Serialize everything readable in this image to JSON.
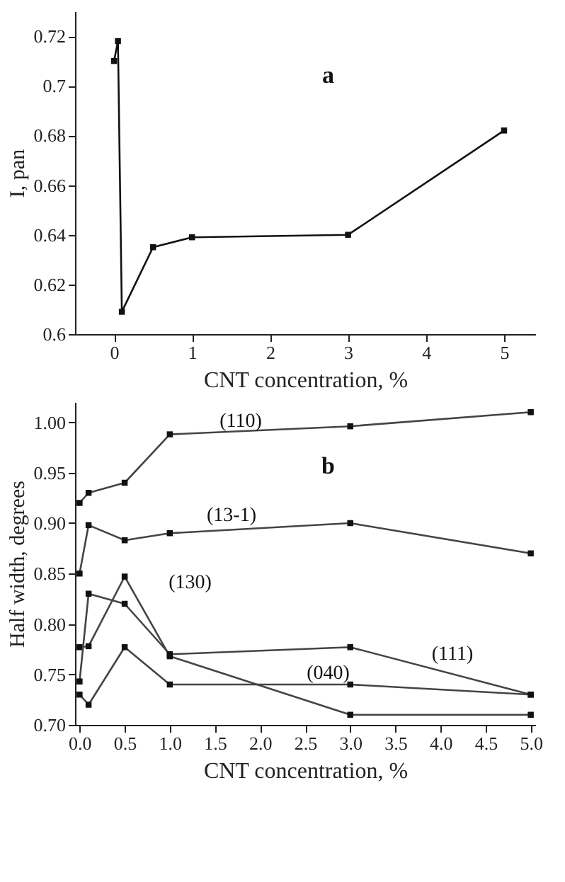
{
  "chart_data": [
    {
      "type": "line",
      "xlabel": "CNT concentration, %",
      "ylabel": "I, pan",
      "marker": "square",
      "line_style": "solid",
      "grid": false,
      "xlim": [
        -0.5,
        5.4
      ],
      "xticks": [
        0,
        1,
        2,
        3,
        4,
        5
      ],
      "ylim": [
        0.6,
        0.73
      ],
      "yticks": [
        0.6,
        0.62,
        0.64,
        0.66,
        0.68,
        0.7,
        0.72
      ],
      "annotations": [
        "a"
      ],
      "series": [
        {
          "color": "#111111",
          "x": [
            0,
            0.05,
            0.1,
            0.5,
            1,
            3,
            5
          ],
          "values": [
            0.71,
            0.718,
            0.609,
            0.635,
            0.639,
            0.64,
            0.682
          ]
        }
      ]
    },
    {
      "type": "line",
      "xlabel": "CNT concentration, %",
      "ylabel": "Half width, degrees",
      "marker": "square",
      "line_style": "solid",
      "grid": false,
      "xlim": [
        -0.05,
        5.05
      ],
      "xticks": [
        {
          "value": 0,
          "label": "0.0"
        },
        0.5,
        {
          "value": 1,
          "label": "1.0"
        },
        1.5,
        {
          "value": 2,
          "label": "2.0"
        },
        2.5,
        {
          "value": 3,
          "label": "3.0"
        },
        3.5,
        {
          "value": 4,
          "label": "4.0"
        },
        4.5,
        {
          "value": 5,
          "label": "5.0"
        }
      ],
      "ylim": [
        0.7,
        1.02
      ],
      "yticks": [
        {
          "value": 0.7,
          "label": "0.70"
        },
        0.75,
        {
          "value": 0.8,
          "label": "0.80"
        },
        0.85,
        {
          "value": 0.9,
          "label": "0.90"
        },
        0.95,
        {
          "value": 1,
          "label": "1.00"
        }
      ],
      "annotations": [
        "b",
        "(110)",
        "(13-1)",
        "(130)",
        "(111)",
        "(040)"
      ],
      "series": [
        {
          "color": "#444444",
          "x": [
            0,
            0.1,
            0.5,
            1,
            3,
            5
          ],
          "values": [
            0.92,
            0.93,
            0.94,
            0.988,
            0.996,
            1.01
          ]
        },
        {
          "color": "#444444",
          "x": [
            0,
            0.1,
            0.5,
            1,
            3,
            5
          ],
          "values": [
            0.85,
            0.898,
            0.883,
            0.89,
            0.9,
            0.87
          ]
        },
        {
          "color": "#444444",
          "x": [
            0,
            0.1,
            0.5,
            1,
            3,
            5
          ],
          "values": [
            0.777,
            0.778,
            0.847,
            0.768,
            0.71,
            0.71
          ]
        },
        {
          "color": "#444444",
          "x": [
            0,
            0.1,
            0.5,
            1,
            3,
            5
          ],
          "values": [
            0.743,
            0.83,
            0.82,
            0.77,
            0.777,
            0.73
          ]
        },
        {
          "color": "#444444",
          "x": [
            0,
            0.1,
            0.5,
            1,
            3,
            5
          ],
          "values": [
            0.73,
            0.72,
            0.777,
            0.74,
            0.74,
            0.73
          ]
        }
      ]
    }
  ]
}
